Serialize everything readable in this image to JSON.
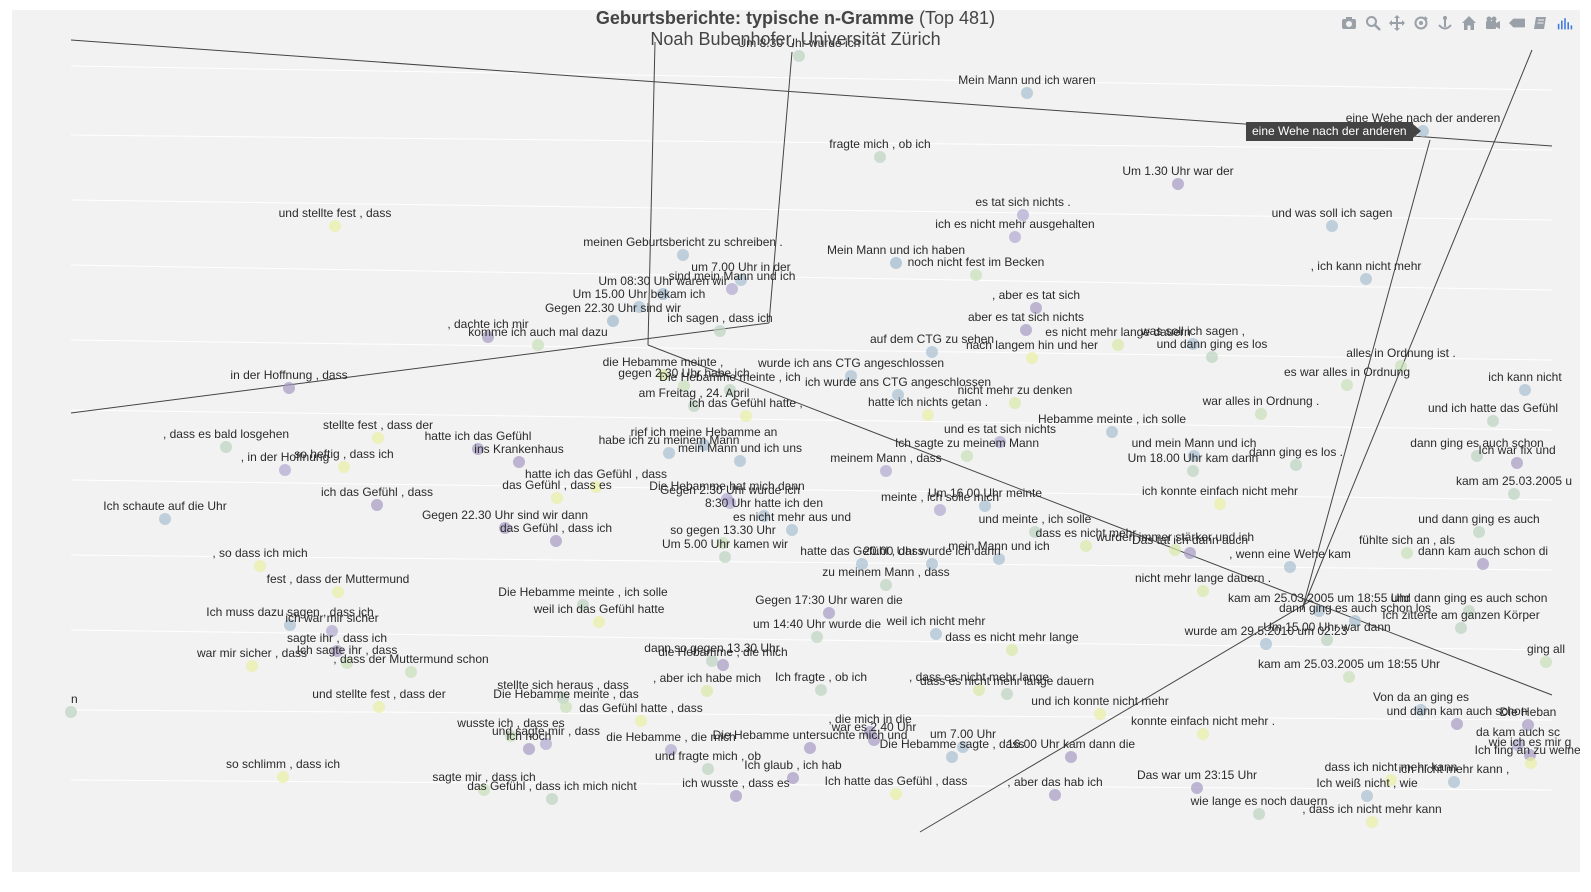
{
  "title": {
    "bold": "Geburtsberichte: typische n-Gramme",
    "rest": " (Top 481)",
    "subtitle": "Noah Bubenhofer, Universität Zürich"
  },
  "tooltip": "eine Wehe nach der anderen",
  "modebar": [
    {
      "icon": "camera-icon",
      "label": "Download plot as png"
    },
    {
      "icon": "zoom-icon",
      "label": "Zoom"
    },
    {
      "icon": "pan-icon",
      "label": "Pan"
    },
    {
      "icon": "orbit-rotation-icon",
      "label": "Orbital rotation"
    },
    {
      "icon": "turntable-icon",
      "label": "Turntable rotation"
    },
    {
      "icon": "home-icon",
      "label": "Reset camera to default"
    },
    {
      "icon": "camera-last-save-icon",
      "label": "Reset camera to last save"
    },
    {
      "icon": "tag-icon",
      "label": "Toggle show closest data on hover"
    },
    {
      "icon": "spikelines-icon",
      "label": "Toggle spike lines"
    },
    {
      "icon": "plotly-logo-icon",
      "label": "Produced with Plotly"
    }
  ],
  "colors": {
    "background": "#f2f2f2",
    "marker_palette": [
      "#a59ac2",
      "#bcd4c2",
      "#e9f0a4",
      "#a8c0d2",
      "#d8e8a8",
      "#b0a8d0",
      "#c8e0b8",
      "#9fb8cc",
      "#e0eab0",
      "#a89cc6"
    ]
  },
  "chart_data": {
    "type": "scatter3d",
    "marker_opacity": 0.7,
    "grid": true,
    "legend": "none",
    "hovered_point": "eine Wehe nach der anderen",
    "axes": {
      "x": {
        "title": ""
      },
      "y": {
        "title": ""
      },
      "z": {
        "title": ""
      }
    },
    "points": [
      {
        "t": "Um 8.30 Uhr wurde ich",
        "c": 1
      },
      {
        "t": "Mein Mann und ich waren",
        "c": 3
      },
      {
        "t": "eine Wehe nach der anderen",
        "c": 3
      },
      {
        "t": "fragte mich , ob ich",
        "c": 1
      },
      {
        "t": "Um 1.30 Uhr war der",
        "c": 0
      },
      {
        "t": "und stellte fest , dass",
        "c": 2
      },
      {
        "t": "es tat sich nichts .",
        "c": 5
      },
      {
        "t": "und was soll ich sagen",
        "c": 3
      },
      {
        "t": "ich es nicht mehr ausgehalten",
        "c": 5
      },
      {
        "t": "meinen Geburtsbericht zu schreiben .",
        "c": 3
      },
      {
        "t": "Mein Mann und ich haben",
        "c": 7
      },
      {
        "t": "noch nicht fest im Becken",
        "c": 6
      },
      {
        "t": ", ich kann nicht mehr",
        "c": 3
      },
      {
        "t": "um 7.00 Uhr in der",
        "c": 3
      },
      {
        "t": "sind mein Mann und ich",
        "c": 5
      },
      {
        "t": "Um 08:30 Uhr waren wir",
        "c": 7
      },
      {
        "t": "Um 15.00 Uhr bekam ich",
        "c": 3
      },
      {
        "t": ", aber es tat sich",
        "c": 0
      },
      {
        "t": "Gegen 22.30 Uhr sind wir",
        "c": 7
      },
      {
        "t": "ich sagen , dass ich",
        "c": 1
      },
      {
        "t": "aber es tat sich nichts",
        "c": 0
      },
      {
        "t": ", dachte ich mir",
        "c": 0
      },
      {
        "t": "komme ich auch mal dazu",
        "c": 6
      },
      {
        "t": "es nicht mehr lange dauern",
        "c": 4
      },
      {
        "t": "was soll ich sagen ,",
        "c": 3
      },
      {
        "t": "auf dem CTG zu sehen",
        "c": 3
      },
      {
        "t": "nach langem hin und her",
        "c": 2
      },
      {
        "t": "und dann ging es los",
        "c": 1
      },
      {
        "t": "alles in Ordnung ist .",
        "c": 6
      },
      {
        "t": "die Hebamme meinte ,",
        "c": 4
      },
      {
        "t": "wurde ich ans CTG angeschlossen",
        "c": 3
      },
      {
        "t": "gegen 2.30 Uhr habe ich",
        "c": 6
      },
      {
        "t": "es war alles in Ordnung",
        "c": 6
      },
      {
        "t": "ich kann nicht",
        "c": 3
      },
      {
        "t": "in der Hoffnung , dass",
        "c": 0
      },
      {
        "t": "Die Hebamme meinte , ich",
        "c": 1
      },
      {
        "t": "ich wurde ans CTG angeschlossen",
        "c": 3
      },
      {
        "t": "nicht mehr zu denken",
        "c": 4
      },
      {
        "t": "am Freitag , 24. April",
        "c": 1
      },
      {
        "t": "ich das Gefühl hatte ,",
        "c": 2
      },
      {
        "t": "hatte ich nichts getan .",
        "c": 2
      },
      {
        "t": "war alles in Ordnung .",
        "c": 6
      },
      {
        "t": "und ich hatte das Gefühl",
        "c": 1
      },
      {
        "t": "Hebamme meinte , ich solle",
        "c": 3
      },
      {
        "t": "stellte fest , dass der",
        "c": 2
      },
      {
        "t": "rief ich meine Hebamme an",
        "c": 7
      },
      {
        "t": "und es tat sich nichts",
        "c": 5
      },
      {
        "t": "Ich sagte zu meinem Mann",
        "c": 6
      },
      {
        "t": "und mein Mann und ich",
        "c": 3
      },
      {
        "t": "dann ging es auch schon",
        "c": 1
      },
      {
        "t": ", dass es bald losgehen",
        "c": 1
      },
      {
        "t": "hatte ich das Gefühl",
        "c": 0
      },
      {
        "t": "habe ich zu meinem Mann",
        "c": 3
      },
      {
        "t": "mein Mann und ich uns",
        "c": 3
      },
      {
        "t": "dann ging es los .",
        "c": 1
      },
      {
        "t": "Ich war fix und",
        "c": 0
      },
      {
        "t": ", in der Hoffnung",
        "c": 5
      },
      {
        "t": "so heftig , dass ich",
        "c": 2
      },
      {
        "t": "ins Krankenhaus",
        "c": 0
      },
      {
        "t": "meinem Mann , dass",
        "c": 5
      },
      {
        "t": "Um 18.00 Uhr kam dann",
        "c": 1
      },
      {
        "t": "hatte ich das Gefühl , dass",
        "c": 2
      },
      {
        "t": "kam am 25.03.2005 u",
        "c": 1
      },
      {
        "t": "das Gefühl , dass es",
        "c": 2
      },
      {
        "t": "Die Hebamme hat mich dann",
        "c": 5
      },
      {
        "t": "Gegen 2.30 Uhr wurde ich",
        "c": 5
      },
      {
        "t": "meinte , ich solle mich",
        "c": 5
      },
      {
        "t": "ich das Gefühl , dass",
        "c": 0
      },
      {
        "t": "Um 16.00 Uhr meinte",
        "c": 3
      },
      {
        "t": "ich konnte einfach nicht mehr",
        "c": 2
      },
      {
        "t": "Ich schaute auf die Uhr",
        "c": 3
      },
      {
        "t": "8:30 Uhr hatte ich den",
        "c": 3
      },
      {
        "t": "Gegen 22.30 Uhr sind wir dann",
        "c": 0
      },
      {
        "t": "es nicht mehr aus und",
        "c": 3
      },
      {
        "t": "und meinte , ich solle",
        "c": 1
      },
      {
        "t": "und dann ging es auch",
        "c": 1
      },
      {
        "t": "das Gefühl , dass ich",
        "c": 0
      },
      {
        "t": "so gegen 13.30 Uhr",
        "c": 6
      },
      {
        "t": "dass es nicht mehr",
        "c": 4
      },
      {
        "t": "wurden immer stärker und ich",
        "c": 4
      },
      {
        "t": "Das tat ich dann auch",
        "c": 0
      },
      {
        "t": "fühlte sich an , als",
        "c": 6
      },
      {
        "t": "Um 5.00 Uhr kamen wir",
        "c": 1
      },
      {
        "t": "mein Mann und ich",
        "c": 3
      },
      {
        "t": "dann kam auch schon di",
        "c": 0
      },
      {
        "t": ", so dass ich mich",
        "c": 2
      },
      {
        "t": "hatte das Gefühl , dass",
        "c": 3
      },
      {
        "t": "20.00 Uhr wurde ich dann",
        "c": 3
      },
      {
        "t": ", wenn eine Wehe kam",
        "c": 3
      },
      {
        "t": "zu meinem Mann , dass",
        "c": 1
      },
      {
        "t": "fest , dass der Muttermund",
        "c": 2
      },
      {
        "t": "nicht mehr lange dauern .",
        "c": 4
      },
      {
        "t": "Die Hebamme meinte , ich solle",
        "c": 1
      },
      {
        "t": "Gegen 17:30 Uhr waren die",
        "c": 0
      },
      {
        "t": "kam am 25.03.2005 um 18:55 Uhr",
        "c": 3
      },
      {
        "t": "und dann ging es auch schon",
        "c": 1
      },
      {
        "t": "Ich muss dazu sagen , dass ich",
        "c": 3
      },
      {
        "t": "weil ich das Gefühl hatte",
        "c": 2
      },
      {
        "t": "dann ging es auch schon los",
        "c": 3
      },
      {
        "t": "Ich zitterte am ganzen Körper",
        "c": 1
      },
      {
        "t": "ich war mir sicher",
        "c": 5
      },
      {
        "t": "um 14:40 Uhr wurde die",
        "c": 1
      },
      {
        "t": "weil ich nicht mehr",
        "c": 3
      },
      {
        "t": "Um 15.00 Uhr war dann",
        "c": 1
      },
      {
        "t": "wurde am 29.5.2010 um 02.23",
        "c": 3
      },
      {
        "t": "sagte ihr , dass ich",
        "c": 0
      },
      {
        "t": "dann so gegen 13.30 Uhr",
        "c": 1
      },
      {
        "t": "dass es nicht mehr lange",
        "c": 4
      },
      {
        "t": "Ich sagte ihr , dass",
        "c": 6
      },
      {
        "t": "war mir sicher , dass",
        "c": 2
      },
      {
        "t": "die Hebamme , die mich",
        "c": 0
      },
      {
        "t": "ging all",
        "c": 6
      },
      {
        "t": ", dass der Muttermund schon",
        "c": 6
      },
      {
        "t": "kam am 25.03.2005 um 18:55 Uhr",
        "c": 6
      },
      {
        "t": "Ich fragte , ob ich",
        "c": 1
      },
      {
        "t": ", dass es nicht mehr lange",
        "c": 4
      },
      {
        "t": ", aber ich habe mich",
        "c": 4
      },
      {
        "t": "dass es nicht mehr lange dauern",
        "c": 1
      },
      {
        "t": "stellte sich heraus , dass",
        "c": 1
      },
      {
        "t": "Von da an ging es",
        "c": 3
      },
      {
        "t": "und stellte fest , dass der",
        "c": 2
      },
      {
        "t": "Die Hebamme meinte , das",
        "c": 6
      },
      {
        "t": "und ich konnte nicht mehr",
        "c": 2
      },
      {
        "t": "und dann kam auch schon",
        "c": 0
      },
      {
        "t": "Die Heban",
        "c": 0
      },
      {
        "t": "das Gefühl hatte , dass",
        "c": 2
      },
      {
        "t": ", die mich in die",
        "c": 0
      },
      {
        "t": "konnte einfach nicht mehr .",
        "c": 2
      },
      {
        "t": "wusste ich , dass es",
        "c": 6
      },
      {
        "t": "war es 2.40 Uhr",
        "c": 0
      },
      {
        "t": "da kam auch sc",
        "c": 5
      },
      {
        "t": "und sagte mir , dass",
        "c": 5
      },
      {
        "t": "ich noch",
        "c": 0
      },
      {
        "t": "Die Hebamme untersuchte mich und",
        "c": 0
      },
      {
        "t": "um 7.00 Uhr",
        "c": 3
      },
      {
        "t": "wie ich es mir g",
        "c": 0
      },
      {
        "t": "die Hebamme , die mich",
        "c": 5
      },
      {
        "t": "Die Hebamme sagte , dass",
        "c": 3
      },
      {
        "t": "16.00 Uhr kam dann die",
        "c": 0
      },
      {
        "t": "und fragte mich , ob",
        "c": 1
      },
      {
        "t": "Ich glaub , ich hab",
        "c": 0
      },
      {
        "t": "dass ich nicht mehr kann",
        "c": 2
      },
      {
        "t": "Ich fing an zu weinen",
        "c": 2
      },
      {
        "t": "so schlimm , dass ich",
        "c": 2
      },
      {
        "t": "ich nicht mehr kann ,",
        "c": 3
      },
      {
        "t": "sagte mir , dass ich",
        "c": 6
      },
      {
        "t": "Ich hatte das Gefühl , dass",
        "c": 2
      },
      {
        "t": "Das war um 23:15 Uhr",
        "c": 0
      },
      {
        "t": "das Gefühl , dass ich mich nicht",
        "c": 1
      },
      {
        "t": "ich wusste , dass es",
        "c": 0
      },
      {
        "t": ", aber das hab ich",
        "c": 0
      },
      {
        "t": "Ich weiß nicht , wie",
        "c": 3
      },
      {
        "t": "wie lange es noch dauern",
        "c": 1
      },
      {
        "t": ", dass ich nicht mehr kann",
        "c": 2
      },
      {
        "t": "n",
        "c": 1
      }
    ]
  }
}
